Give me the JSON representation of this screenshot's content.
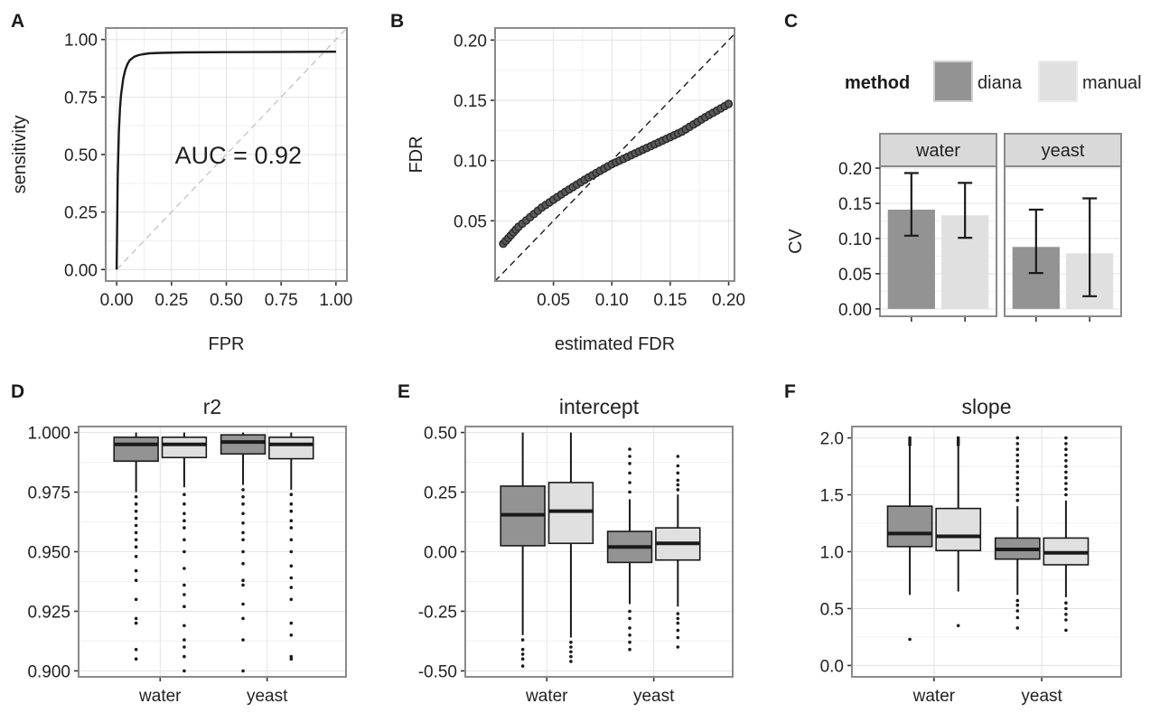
{
  "panel_labels": [
    "A",
    "B",
    "C",
    "D",
    "E",
    "F"
  ],
  "colors": {
    "diana": "#939393",
    "manual": "#e0e0e0",
    "line": "#1a1a1a",
    "frame": "#8a8a8a",
    "grid": "#e3e3e3"
  },
  "chart_data": [
    {
      "panel": "A",
      "type": "line",
      "xlabel": "FPR",
      "ylabel": "sensitivity",
      "xlim": [
        0,
        1
      ],
      "ylim": [
        0,
        1
      ],
      "xticks": [
        "0.00",
        "0.25",
        "0.50",
        "0.75",
        "1.00"
      ],
      "yticks": [
        "0.00",
        "0.25",
        "0.50",
        "0.75",
        "1.00"
      ],
      "annotation": "AUC = 0.92",
      "diagonal_reference": true,
      "series": [
        {
          "x": [
            0,
            0.005,
            0.01,
            0.015,
            0.02,
            0.03,
            0.04,
            0.05,
            0.06,
            0.08,
            0.1,
            0.12,
            0.15,
            0.2,
            0.3,
            0.5,
            0.75,
            1.0
          ],
          "y": [
            0,
            0.4,
            0.6,
            0.7,
            0.76,
            0.83,
            0.87,
            0.895,
            0.91,
            0.925,
            0.932,
            0.936,
            0.94,
            0.942,
            0.944,
            0.945,
            0.946,
            0.947
          ]
        }
      ]
    },
    {
      "panel": "B",
      "type": "scatter",
      "xlabel": "estimated FDR",
      "ylabel": "FDR",
      "xlim": [
        0,
        0.205
      ],
      "ylim": [
        0,
        0.21
      ],
      "xticks": [
        "0.05",
        "0.10",
        "0.15",
        "0.20"
      ],
      "yticks": [
        "0.05",
        "0.10",
        "0.15",
        "0.20"
      ],
      "identity_line": true,
      "curve_x": [
        0.007,
        0.02,
        0.04,
        0.06,
        0.08,
        0.1,
        0.12,
        0.14,
        0.16,
        0.18,
        0.2
      ],
      "curve_y": [
        0.031,
        0.045,
        0.061,
        0.074,
        0.086,
        0.097,
        0.106,
        0.115,
        0.124,
        0.136,
        0.147
      ]
    },
    {
      "panel": "C",
      "type": "bar",
      "ylabel": "CV",
      "ylim": [
        0,
        0.2
      ],
      "yticks": [
        "0.00",
        "0.05",
        "0.10",
        "0.15",
        "0.20"
      ],
      "legend_title": "method",
      "legend_position": "top",
      "facets": [
        "water",
        "yeast"
      ],
      "series": [
        {
          "name": "diana",
          "values": [
            0.141,
            0.088
          ],
          "lower": [
            0.104,
            0.051
          ],
          "upper": [
            0.193,
            0.141
          ]
        },
        {
          "name": "manual",
          "values": [
            0.133,
            0.079
          ],
          "lower": [
            0.101,
            0.018
          ],
          "upper": [
            0.179,
            0.157
          ]
        }
      ]
    },
    {
      "panel": "D",
      "type": "box",
      "title": "r2",
      "categories": [
        "water",
        "yeast"
      ],
      "ylim": [
        0.8975,
        1.0025
      ],
      "yticks": [
        "0.900",
        "0.925",
        "0.950",
        "0.975",
        "1.000"
      ],
      "boxes": [
        {
          "group": "water",
          "method": "diana",
          "q1": 0.988,
          "median": 0.995,
          "q3": 0.998,
          "whisker_low": 0.975,
          "whisker_high": 1.0,
          "outliers": [
            0.905,
            0.909,
            0.92,
            0.922,
            0.93,
            0.938,
            0.942,
            0.948,
            0.952,
            0.955,
            0.958,
            0.961,
            0.964,
            0.967,
            0.97,
            0.973
          ]
        },
        {
          "group": "water",
          "method": "manual",
          "q1": 0.9895,
          "median": 0.995,
          "q3": 0.998,
          "whisker_low": 0.977,
          "whisker_high": 1.0,
          "outliers": [
            0.9,
            0.906,
            0.91,
            0.913,
            0.919,
            0.927,
            0.932,
            0.936,
            0.943,
            0.95,
            0.955,
            0.96,
            0.963,
            0.966,
            0.97,
            0.974
          ]
        },
        {
          "group": "yeast",
          "method": "diana",
          "q1": 0.991,
          "median": 0.996,
          "q3": 0.999,
          "whisker_low": 0.978,
          "whisker_high": 1.0,
          "outliers": [
            0.9,
            0.913,
            0.922,
            0.928,
            0.936,
            0.938,
            0.945,
            0.95,
            0.955,
            0.958,
            0.962,
            0.966,
            0.97,
            0.973,
            0.976
          ]
        },
        {
          "group": "yeast",
          "method": "manual",
          "q1": 0.989,
          "median": 0.995,
          "q3": 0.998,
          "whisker_low": 0.976,
          "whisker_high": 1.0,
          "outliers": [
            0.905,
            0.906,
            0.915,
            0.92,
            0.93,
            0.935,
            0.939,
            0.944,
            0.95,
            0.955,
            0.96,
            0.963,
            0.967,
            0.97,
            0.974
          ]
        }
      ]
    },
    {
      "panel": "E",
      "type": "box",
      "title": "intercept",
      "categories": [
        "water",
        "yeast"
      ],
      "ylim": [
        -0.525,
        0.525
      ],
      "yticks": [
        "-0.50",
        "-0.25",
        "0.00",
        "0.25",
        "0.50"
      ],
      "boxes": [
        {
          "group": "water",
          "method": "diana",
          "q1": 0.025,
          "median": 0.155,
          "q3": 0.275,
          "whisker_low": -0.35,
          "whisker_high": 0.5,
          "outliers": [
            -0.37,
            -0.41,
            -0.43,
            -0.45,
            -0.48
          ]
        },
        {
          "group": "water",
          "method": "manual",
          "q1": 0.035,
          "median": 0.17,
          "q3": 0.29,
          "whisker_low": -0.36,
          "whisker_high": 0.5,
          "outliers": [
            -0.38,
            -0.4,
            -0.42,
            -0.44,
            -0.46
          ]
        },
        {
          "group": "yeast",
          "method": "diana",
          "q1": -0.045,
          "median": 0.02,
          "q3": 0.085,
          "whisker_low": -0.22,
          "whisker_high": 0.22,
          "outliers": [
            -0.25,
            -0.28,
            -0.32,
            -0.35,
            -0.38,
            -0.41,
            0.25,
            0.29,
            0.33,
            0.37,
            0.4,
            0.43
          ]
        },
        {
          "group": "yeast",
          "method": "manual",
          "q1": -0.035,
          "median": 0.035,
          "q3": 0.1,
          "whisker_low": -0.23,
          "whisker_high": 0.24,
          "outliers": [
            -0.26,
            -0.28,
            -0.3,
            -0.33,
            -0.36,
            -0.4,
            0.26,
            0.28,
            0.3,
            0.33,
            0.36,
            0.4
          ]
        }
      ]
    },
    {
      "panel": "F",
      "type": "box",
      "title": "slope",
      "categories": [
        "water",
        "yeast"
      ],
      "ylim": [
        -0.1,
        2.1
      ],
      "yticks": [
        "0.0",
        "0.5",
        "1.0",
        "1.5",
        "2.0"
      ],
      "boxes": [
        {
          "group": "water",
          "method": "diana",
          "q1": 1.045,
          "median": 1.16,
          "q3": 1.4,
          "whisker_low": 0.62,
          "whisker_high": 1.93,
          "outliers": [
            0.23,
            1.94,
            1.96,
            1.98,
            2.0
          ]
        },
        {
          "group": "water",
          "method": "manual",
          "q1": 1.01,
          "median": 1.135,
          "q3": 1.38,
          "whisker_low": 0.65,
          "whisker_high": 1.93,
          "outliers": [
            0.35,
            1.94,
            1.96,
            1.98,
            2.0
          ]
        },
        {
          "group": "yeast",
          "method": "diana",
          "q1": 0.935,
          "median": 1.02,
          "q3": 1.12,
          "whisker_low": 0.62,
          "whisker_high": 1.4,
          "outliers": [
            0.33,
            0.42,
            0.48,
            0.53,
            0.57,
            1.45,
            1.5,
            1.55,
            1.6,
            1.65,
            1.7,
            1.75,
            1.8,
            1.85,
            1.9,
            1.95,
            2.0
          ]
        },
        {
          "group": "yeast",
          "method": "manual",
          "q1": 0.885,
          "median": 0.99,
          "q3": 1.12,
          "whisker_low": 0.6,
          "whisker_high": 1.45,
          "outliers": [
            0.31,
            0.4,
            0.45,
            0.5,
            0.55,
            1.5,
            1.55,
            1.6,
            1.65,
            1.7,
            1.75,
            1.8,
            1.85,
            1.9,
            1.95,
            2.0
          ]
        }
      ]
    }
  ]
}
